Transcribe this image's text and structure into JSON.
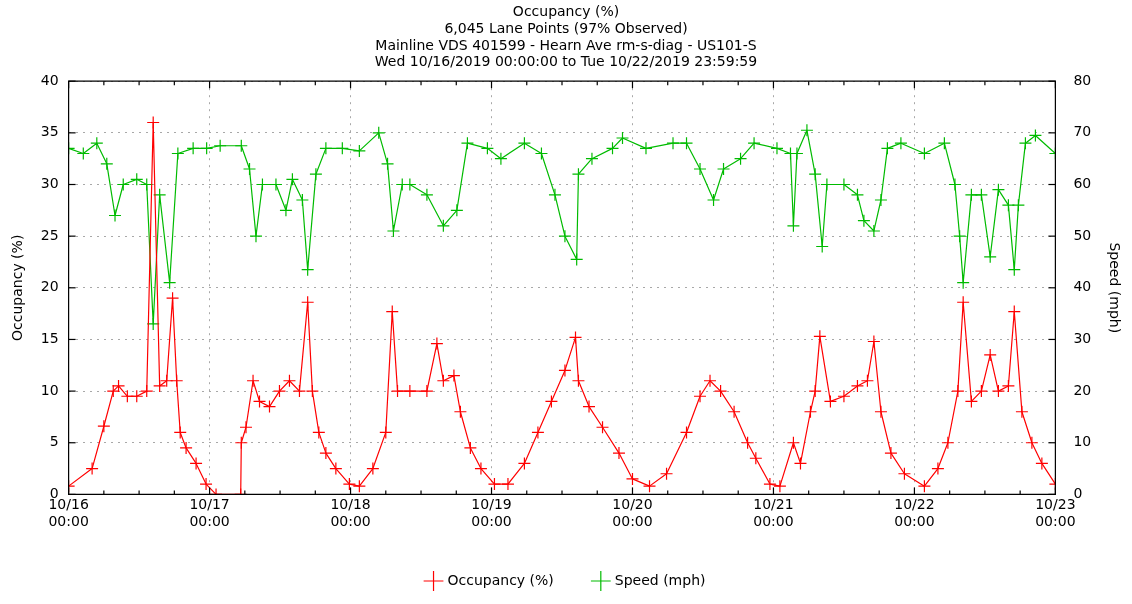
{
  "chart_data": {
    "type": "line",
    "title": "Occupancy (%)",
    "subtitle": "6,045 Lane Points (97% Observed)\nMainline VDS 401599 - Hearn Ave rm-s-diag - US101-S\nWed 10/16/2019 00:00:00 to Tue 10/22/2019 23:59:59",
    "ylabel": "Occupancy (%)",
    "y2label": "Speed (mph)",
    "xlim": [
      "2019-10-16T00:00",
      "2019-10-23T00:00"
    ],
    "xticks": [
      {
        "value": "2019-10-16T00:00",
        "label": "10/16\n00:00"
      },
      {
        "value": "2019-10-16T06:00",
        "label": null
      },
      {
        "value": "2019-10-16T12:00",
        "label": null
      },
      {
        "value": "2019-10-16T18:00",
        "label": null
      },
      {
        "value": "2019-10-17T00:00",
        "label": "10/17\n00:00"
      },
      {
        "value": "2019-10-17T06:00",
        "label": null
      },
      {
        "value": "2019-10-17T12:00",
        "label": null
      },
      {
        "value": "2019-10-17T18:00",
        "label": null
      },
      {
        "value": "2019-10-18T00:00",
        "label": "10/18\n00:00"
      },
      {
        "value": "2019-10-18T06:00",
        "label": null
      },
      {
        "value": "2019-10-18T12:00",
        "label": null
      },
      {
        "value": "2019-10-18T18:00",
        "label": null
      },
      {
        "value": "2019-10-19T00:00",
        "label": "10/19\n00:00"
      },
      {
        "value": "2019-10-19T06:00",
        "label": null
      },
      {
        "value": "2019-10-19T12:00",
        "label": null
      },
      {
        "value": "2019-10-19T18:00",
        "label": null
      },
      {
        "value": "2019-10-20T00:00",
        "label": "10/20\n00:00"
      },
      {
        "value": "2019-10-20T06:00",
        "label": null
      },
      {
        "value": "2019-10-20T12:00",
        "label": null
      },
      {
        "value": "2019-10-20T18:00",
        "label": null
      },
      {
        "value": "2019-10-21T00:00",
        "label": "10/21\n00:00"
      },
      {
        "value": "2019-10-21T06:00",
        "label": null
      },
      {
        "value": "2019-10-21T12:00",
        "label": null
      },
      {
        "value": "2019-10-21T18:00",
        "label": null
      },
      {
        "value": "2019-10-22T00:00",
        "label": "10/22\n00:00"
      },
      {
        "value": "2019-10-22T06:00",
        "label": null
      },
      {
        "value": "2019-10-22T12:00",
        "label": null
      },
      {
        "value": "2019-10-22T18:00",
        "label": null
      },
      {
        "value": "2019-10-23T00:00",
        "label": "10/23\n00:00"
      }
    ],
    "ylim": [
      0,
      40
    ],
    "yticks": [
      0,
      5,
      10,
      15,
      20,
      25,
      30,
      35,
      40
    ],
    "y2lim": [
      0,
      80
    ],
    "y2ticks": [
      0,
      10,
      20,
      30,
      40,
      50,
      60,
      70,
      80
    ],
    "grid": true,
    "legend": "bottom",
    "marker": "cross",
    "line_style": "solid",
    "series": [
      {
        "name": "Occupancy (%)",
        "color": "#ff0000",
        "x": [
          "2019-10-16T00:00",
          "2019-10-16T04:00",
          "2019-10-16T06:00",
          "2019-10-16T07:36",
          "2019-10-16T08:30",
          "2019-10-16T10:00",
          "2019-10-16T11:36",
          "2019-10-16T13:18",
          "2019-10-16T14:24",
          "2019-10-16T15:30",
          "2019-10-16T16:42",
          "2019-10-16T17:42",
          "2019-10-16T18:24",
          "2019-10-16T19:00",
          "2019-10-16T20:00",
          "2019-10-16T21:42",
          "2019-10-16T23:24",
          "2019-10-17T01:06",
          "2019-10-17T05:18",
          "2019-10-17T05:24",
          "2019-10-17T06:12",
          "2019-10-17T07:24",
          "2019-10-17T08:30",
          "2019-10-17T10:12",
          "2019-10-17T11:54",
          "2019-10-17T13:36",
          "2019-10-17T15:18",
          "2019-10-17T16:42",
          "2019-10-17T17:30",
          "2019-10-17T18:36",
          "2019-10-17T19:48",
          "2019-10-17T21:30",
          "2019-10-17T23:48",
          "2019-10-18T01:30",
          "2019-10-18T03:48",
          "2019-10-18T06:00",
          "2019-10-18T07:06",
          "2019-10-18T08:00",
          "2019-10-18T10:06",
          "2019-10-18T13:00",
          "2019-10-18T14:42",
          "2019-10-18T15:48",
          "2019-10-18T17:36",
          "2019-10-18T18:42",
          "2019-10-18T20:24",
          "2019-10-18T22:12",
          "2019-10-19T00:30",
          "2019-10-19T02:48",
          "2019-10-19T05:36",
          "2019-10-19T07:54",
          "2019-10-19T10:12",
          "2019-10-19T12:30",
          "2019-10-19T14:18",
          "2019-10-19T14:48",
          "2019-10-19T16:36",
          "2019-10-19T18:54",
          "2019-10-19T21:42",
          "2019-10-20T00:00",
          "2019-10-20T02:54",
          "2019-10-20T05:48",
          "2019-10-20T09:12",
          "2019-10-20T11:30",
          "2019-10-20T13:12",
          "2019-10-20T15:00",
          "2019-10-20T17:18",
          "2019-10-20T19:36",
          "2019-10-20T21:00",
          "2019-10-20T23:24",
          "2019-10-21T01:06",
          "2019-10-21T03:24",
          "2019-10-21T04:36",
          "2019-10-21T06:18",
          "2019-10-21T07:06",
          "2019-10-21T07:54",
          "2019-10-21T09:42",
          "2019-10-21T12:00",
          "2019-10-21T14:18",
          "2019-10-21T16:00",
          "2019-10-21T17:06",
          "2019-10-21T18:18",
          "2019-10-21T20:00",
          "2019-10-21T22:18",
          "2019-10-22T01:42",
          "2019-10-22T04:00",
          "2019-10-22T05:42",
          "2019-10-22T07:24",
          "2019-10-22T08:18",
          "2019-10-22T09:42",
          "2019-10-22T11:24",
          "2019-10-22T12:54",
          "2019-10-22T14:18",
          "2019-10-22T16:00",
          "2019-10-22T17:00",
          "2019-10-22T18:18",
          "2019-10-22T20:00",
          "2019-10-22T21:42",
          "2019-10-23T00:00"
        ],
        "values": [
          0.8,
          2.5,
          6.6,
          10,
          10.5,
          9.5,
          9.5,
          10,
          36,
          10.5,
          11,
          19,
          11,
          6,
          4.5,
          3,
          1,
          0,
          0,
          5,
          6.5,
          11,
          9,
          8.5,
          10,
          11,
          10,
          18.6,
          10,
          6,
          4,
          2.5,
          1,
          0.8,
          2.5,
          6,
          17.7,
          10,
          10,
          10,
          14.6,
          11,
          11.5,
          8,
          4.5,
          2.5,
          1,
          1,
          3,
          6,
          9,
          12,
          15.2,
          11,
          8.5,
          6.5,
          4,
          1.5,
          0.8,
          2,
          6,
          9.5,
          11,
          10,
          8,
          5,
          3.5,
          1,
          0.8,
          5,
          3,
          8,
          10,
          15.3,
          9,
          9.5,
          10.5,
          11,
          14.8,
          8,
          4,
          2,
          0.8,
          2.5,
          5,
          10,
          18.6,
          9,
          10,
          13.5,
          10,
          10.5,
          17.7,
          8,
          5,
          3,
          1
        ]
      },
      {
        "name": "Speed (mph)",
        "color": "#00bb00",
        "axis": "y2",
        "x": [
          "2019-10-16T00:00",
          "2019-10-16T02:30",
          "2019-10-16T04:48",
          "2019-10-16T06:30",
          "2019-10-16T07:54",
          "2019-10-16T09:18",
          "2019-10-16T11:36",
          "2019-10-16T13:18",
          "2019-10-16T14:24",
          "2019-10-16T15:30",
          "2019-10-16T17:12",
          "2019-10-16T18:36",
          "2019-10-16T21:12",
          "2019-10-16T23:30",
          "2019-10-17T01:48",
          "2019-10-17T05:24",
          "2019-10-17T06:48",
          "2019-10-17T07:54",
          "2019-10-17T09:00",
          "2019-10-17T11:18",
          "2019-10-17T13:00",
          "2019-10-17T14:06",
          "2019-10-17T15:48",
          "2019-10-17T16:42",
          "2019-10-17T18:06",
          "2019-10-17T19:48",
          "2019-10-17T22:36",
          "2019-10-18T01:30",
          "2019-10-18T04:48",
          "2019-10-18T06:18",
          "2019-10-18T07:18",
          "2019-10-18T08:48",
          "2019-10-18T10:06",
          "2019-10-18T13:00",
          "2019-10-18T15:48",
          "2019-10-18T18:06",
          "2019-10-18T19:54",
          "2019-10-18T23:18",
          "2019-10-19T01:36",
          "2019-10-19T05:36",
          "2019-10-19T08:30",
          "2019-10-19T10:48",
          "2019-10-19T12:30",
          "2019-10-19T14:30",
          "2019-10-19T14:48",
          "2019-10-19T17:06",
          "2019-10-19T20:36",
          "2019-10-19T22:18",
          "2019-10-20T02:18",
          "2019-10-20T06:54",
          "2019-10-20T09:12",
          "2019-10-20T11:30",
          "2019-10-20T13:48",
          "2019-10-20T15:30",
          "2019-10-20T18:24",
          "2019-10-20T20:42",
          "2019-10-21T00:36",
          "2019-10-21T02:54",
          "2019-10-21T03:24",
          "2019-10-21T04:00",
          "2019-10-21T05:42",
          "2019-10-21T07:06",
          "2019-10-21T08:18",
          "2019-10-21T09:06",
          "2019-10-21T12:00",
          "2019-10-21T14:18",
          "2019-10-21T15:24",
          "2019-10-21T17:06",
          "2019-10-21T18:18",
          "2019-10-21T19:24",
          "2019-10-21T21:42",
          "2019-10-22T01:42",
          "2019-10-22T05:06",
          "2019-10-22T06:54",
          "2019-10-22T07:42",
          "2019-10-22T08:18",
          "2019-10-22T09:42",
          "2019-10-22T11:24",
          "2019-10-22T12:54",
          "2019-10-22T14:18",
          "2019-10-22T16:00",
          "2019-10-22T17:00",
          "2019-10-22T17:42",
          "2019-10-22T18:54",
          "2019-10-22T20:36",
          "2019-10-23T00:00"
        ],
        "values": [
          67,
          66,
          68,
          64,
          54,
          60,
          61,
          60,
          33,
          58,
          41,
          66,
          67,
          67,
          67.5,
          67.5,
          63,
          50,
          60,
          60,
          55,
          61,
          57,
          43.5,
          62,
          67,
          67,
          66.5,
          70,
          64,
          51,
          60,
          60,
          58,
          52,
          55,
          68,
          67,
          65,
          68,
          66,
          58,
          50,
          45.5,
          62,
          65,
          67,
          69,
          67,
          68,
          68,
          63,
          57,
          63,
          65,
          68,
          67,
          66,
          52,
          66,
          70.5,
          62,
          48,
          60,
          60,
          58,
          53,
          51,
          57,
          67,
          68,
          66,
          68,
          60,
          50,
          41,
          58,
          58,
          46,
          59,
          56,
          43.5,
          56,
          68,
          69.5,
          66
        ]
      }
    ]
  }
}
